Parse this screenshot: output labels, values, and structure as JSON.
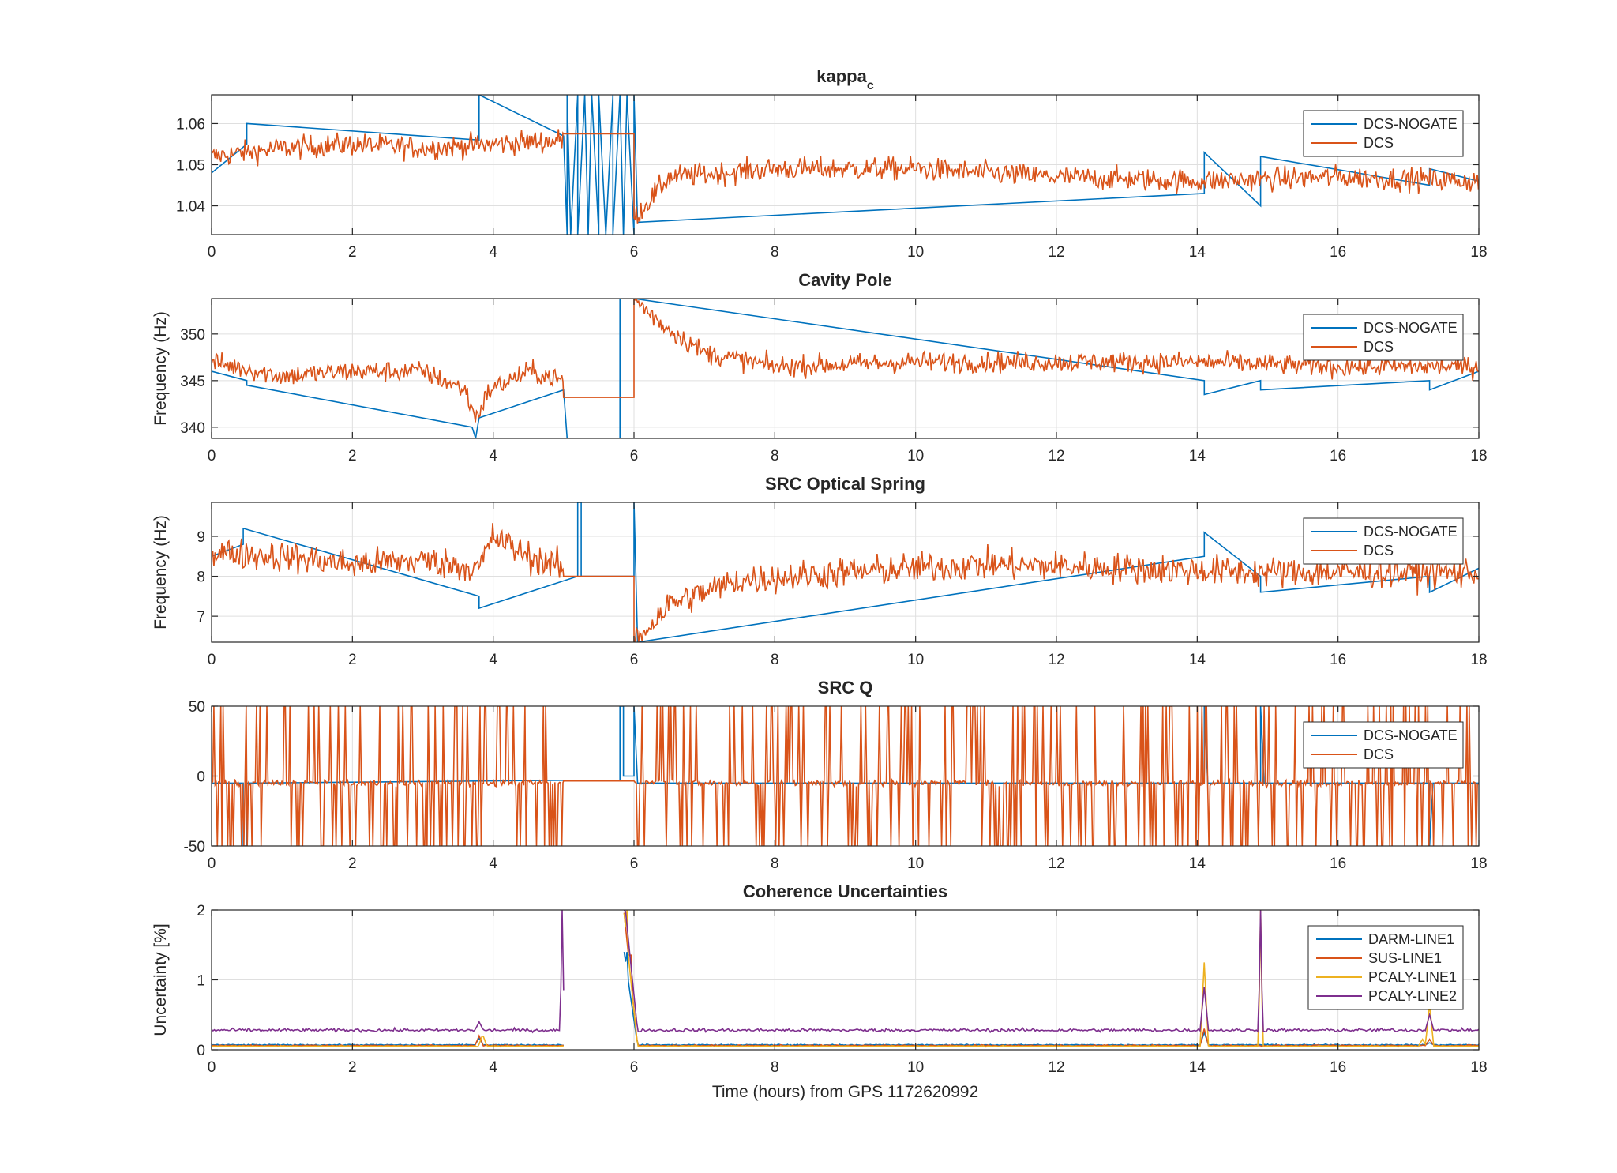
{
  "colors": {
    "blue": "#0072BD",
    "orange": "#D95319",
    "yellow": "#EDB120",
    "purple": "#7E2F8E",
    "axis": "#262626",
    "grid": "#dfdfdf"
  },
  "chart_data": [
    {
      "type": "line",
      "title": "kappa",
      "title_sub": "c",
      "xlabel": "",
      "ylabel": "",
      "xlim": [
        0,
        18
      ],
      "ylim": [
        1.033,
        1.067
      ],
      "xticks": [
        0,
        2,
        4,
        6,
        8,
        10,
        12,
        14,
        16,
        18
      ],
      "yticks": [
        1.04,
        1.05,
        1.06
      ],
      "ytick_labels": [
        "1.04",
        "1.05",
        "1.06"
      ],
      "legend": {
        "position": "top-right",
        "entries": [
          "DCS-NOGATE",
          "DCS"
        ]
      },
      "grid": true,
      "series": [
        {
          "name": "DCS-NOGATE",
          "color": "#0072BD",
          "x": [
            0,
            0.5,
            0.5,
            3.8,
            3.8,
            5.0,
            5.05,
            5.05,
            5.1,
            5.2,
            5.2,
            5.3,
            5.35,
            5.4,
            5.5,
            5.5,
            5.6,
            5.7,
            5.7,
            5.8,
            5.85,
            5.9,
            6.0,
            6.0,
            6.05,
            14.1,
            14.1,
            14.9,
            14.9,
            17.3,
            17.3,
            18
          ],
          "y": [
            1.048,
            1.055,
            1.06,
            1.056,
            1.067,
            1.057,
            1.033,
            1.067,
            1.033,
            1.067,
            1.033,
            1.067,
            1.033,
            1.067,
            1.033,
            1.067,
            1.033,
            1.067,
            1.033,
            1.067,
            1.033,
            1.067,
            1.033,
            1.067,
            1.036,
            1.043,
            1.053,
            1.04,
            1.052,
            1.045,
            1.049,
            1.046
          ]
        },
        {
          "name": "DCS",
          "color": "#D95319",
          "base": [
            [
              0,
              1.052
            ],
            [
              1.0,
              1.054
            ],
            [
              2.0,
              1.055
            ],
            [
              3.0,
              1.054
            ],
            [
              4.0,
              1.055
            ],
            [
              5.0,
              1.056
            ]
          ],
          "flat": [
            [
              5.0,
              1.0575
            ],
            [
              6.0,
              1.0575
            ]
          ],
          "tail": [
            [
              6.0,
              1.037
            ],
            [
              6.5,
              1.047
            ],
            [
              8,
              1.049
            ],
            [
              10,
              1.049
            ],
            [
              12,
              1.047
            ],
            [
              14,
              1.046
            ],
            [
              16,
              1.047
            ],
            [
              18,
              1.046
            ]
          ],
          "noise": 0.004
        }
      ]
    },
    {
      "type": "line",
      "title": "Cavity Pole",
      "xlabel": "",
      "ylabel": "Frequency (Hz)",
      "xlim": [
        0,
        18
      ],
      "ylim": [
        338.8,
        353.8
      ],
      "xticks": [
        0,
        2,
        4,
        6,
        8,
        10,
        12,
        14,
        16,
        18
      ],
      "yticks": [
        340,
        345,
        350
      ],
      "ytick_labels": [
        "340",
        "345",
        "350"
      ],
      "legend": {
        "position": "top-right",
        "entries": [
          "DCS-NOGATE",
          "DCS"
        ]
      },
      "grid": true,
      "series": [
        {
          "name": "DCS-NOGATE",
          "color": "#0072BD",
          "x": [
            0,
            0.5,
            0.5,
            3.7,
            3.75,
            3.8,
            5.0,
            5.05,
            5.05,
            5.8,
            5.8,
            5.85,
            6.0,
            14.1,
            14.1,
            14.9,
            14.9,
            17.3,
            17.3,
            18
          ],
          "y": [
            346,
            345,
            344.5,
            340,
            338.8,
            341,
            344,
            338.8,
            338.8,
            338.8,
            353.8,
            353.8,
            353.8,
            345,
            343.5,
            345,
            344,
            345,
            344,
            346
          ]
        },
        {
          "name": "DCS",
          "color": "#D95319",
          "base": [
            [
              0,
              347
            ],
            [
              1.0,
              345.5
            ],
            [
              2.0,
              346
            ],
            [
              3.0,
              346
            ],
            [
              3.6,
              344
            ],
            [
              3.75,
              341
            ],
            [
              3.95,
              344
            ],
            [
              4.5,
              346
            ],
            [
              5.0,
              345
            ]
          ],
          "flat": [
            [
              5.0,
              343.2
            ],
            [
              6.0,
              343.2
            ]
          ],
          "tail": [
            [
              6.0,
              353.8
            ],
            [
              6.4,
              351
            ],
            [
              7,
              348
            ],
            [
              8,
              346.5
            ],
            [
              10,
              347
            ],
            [
              12,
              347
            ],
            [
              14,
              347
            ],
            [
              16,
              346.5
            ],
            [
              18,
              346.5
            ]
          ],
          "noise": 1.6
        }
      ]
    },
    {
      "type": "line",
      "title": "SRC Optical Spring",
      "xlabel": "",
      "ylabel": "Frequency (Hz)",
      "xlim": [
        0,
        18
      ],
      "ylim": [
        6.35,
        9.85
      ],
      "xticks": [
        0,
        2,
        4,
        6,
        8,
        10,
        12,
        14,
        16,
        18
      ],
      "yticks": [
        7,
        8,
        9
      ],
      "ytick_labels": [
        "7",
        "8",
        "9"
      ],
      "legend": {
        "position": "top-right",
        "entries": [
          "DCS-NOGATE",
          "DCS"
        ]
      },
      "grid": true,
      "series": [
        {
          "name": "DCS-NOGATE",
          "color": "#0072BD",
          "x": [
            0,
            0.45,
            0.45,
            3.8,
            3.8,
            5.2,
            5.2,
            5.25,
            5.25,
            6.0,
            6.0,
            6.05,
            14.1,
            14.1,
            14.9,
            14.9,
            17.3,
            17.3,
            18
          ],
          "y": [
            8.5,
            8.8,
            9.2,
            7.5,
            7.2,
            8.0,
            9.85,
            9.85,
            8.0,
            8.0,
            9.85,
            6.35,
            8.5,
            9.1,
            8.0,
            7.6,
            8.0,
            7.6,
            8.2
          ]
        },
        {
          "name": "DCS",
          "color": "#D95319",
          "base": [
            [
              0,
              8.6
            ],
            [
              1.0,
              8.5
            ],
            [
              2.0,
              8.3
            ],
            [
              3.0,
              8.4
            ],
            [
              3.8,
              8.2
            ],
            [
              4.0,
              9.0
            ],
            [
              4.5,
              8.5
            ],
            [
              5.0,
              8.2
            ]
          ],
          "flat": [
            [
              5.0,
              8.0
            ],
            [
              6.0,
              8.0
            ]
          ],
          "tail": [
            [
              6.0,
              6.35
            ],
            [
              6.5,
              7.3
            ],
            [
              7.5,
              7.9
            ],
            [
              9,
              8.1
            ],
            [
              11,
              8.3
            ],
            [
              13,
              8.2
            ],
            [
              15,
              8.1
            ],
            [
              18,
              8.1
            ]
          ],
          "noise": 0.55
        }
      ]
    },
    {
      "type": "line",
      "title": "SRC Q",
      "xlabel": "",
      "ylabel": "",
      "xlim": [
        0,
        18
      ],
      "ylim": [
        -50,
        50
      ],
      "xticks": [
        0,
        2,
        4,
        6,
        8,
        10,
        12,
        14,
        16,
        18
      ],
      "yticks": [
        -50,
        0,
        50
      ],
      "ytick_labels": [
        "-50",
        "0",
        "50"
      ],
      "legend": {
        "position": "top-right",
        "entries": [
          "DCS-NOGATE",
          "DCS"
        ]
      },
      "grid": true,
      "series": [
        {
          "name": "DCS-NOGATE",
          "color": "#0072BD",
          "x": [
            0,
            0.45,
            0.45,
            0.5,
            0.5,
            5.0,
            5.8,
            5.8,
            5.85,
            5.85,
            6.0,
            6.0,
            6.05,
            14.1,
            14.1,
            14.15,
            14.9,
            14.9,
            14.95,
            17.3,
            17.3,
            17.35,
            18
          ],
          "y": [
            -5,
            -5,
            -50,
            -50,
            -5,
            -3,
            -3,
            50,
            50,
            0,
            0,
            50,
            -5,
            -5,
            50,
            -5,
            -5,
            50,
            -5,
            -5,
            -50,
            -5,
            -5
          ]
        },
        {
          "name": "DCS",
          "color": "#D95319",
          "base": [
            [
              0,
              -5
            ],
            [
              5.0,
              -5
            ]
          ],
          "flat": [
            [
              5.0,
              -3.5
            ],
            [
              6.0,
              -3.5
            ]
          ],
          "tail": [
            [
              6.0,
              -3.5
            ],
            [
              7,
              -5
            ],
            [
              18,
              -5
            ]
          ],
          "noise": 3,
          "spike_density": 0.55
        }
      ]
    },
    {
      "type": "line",
      "title": "Coherence Uncertainties",
      "xlabel": "Time (hours) from GPS 1172620992",
      "ylabel": "Uncertainty [%]",
      "xlim": [
        0,
        18
      ],
      "ylim": [
        0,
        2
      ],
      "xticks": [
        0,
        2,
        4,
        6,
        8,
        10,
        12,
        14,
        16,
        18
      ],
      "yticks": [
        0,
        1,
        2
      ],
      "ytick_labels": [
        "0",
        "1",
        "2"
      ],
      "legend": {
        "position": "top-right",
        "entries": [
          "DARM-LINE1",
          "SUS-LINE1",
          "PCALY-LINE1",
          "PCALY-LINE2"
        ]
      },
      "grid": true,
      "gap": [
        5.0,
        5.85
      ],
      "series": [
        {
          "name": "DARM-LINE1",
          "color": "#0072BD",
          "level": 0.07,
          "noise": 0.015,
          "peaks": [
            [
              3.8,
              0.17
            ],
            [
              5.9,
              1.4
            ],
            [
              14.1,
              0.25
            ],
            [
              17.3,
              0.1
            ]
          ]
        },
        {
          "name": "SUS-LINE1",
          "color": "#D95319",
          "level": 0.06,
          "noise": 0.015,
          "peaks": [
            [
              3.8,
              0.2
            ],
            [
              5.95,
              2.0
            ],
            [
              14.1,
              0.3
            ],
            [
              17.3,
              0.15
            ]
          ]
        },
        {
          "name": "PCALY-LINE1",
          "color": "#EDB120",
          "level": 0.05,
          "noise": 0.012,
          "peaks": [
            [
              3.85,
              0.22
            ],
            [
              5.9,
              2.0
            ],
            [
              14.1,
              1.25
            ],
            [
              14.9,
              2.0
            ],
            [
              17.2,
              0.15
            ],
            [
              17.3,
              0.65
            ]
          ]
        },
        {
          "name": "PCALY-LINE2",
          "color": "#7E2F8E",
          "level": 0.28,
          "noise": 0.04,
          "peaks": [
            [
              3.8,
              0.4
            ],
            [
              4.98,
              2.0
            ],
            [
              5.85,
              2.0
            ],
            [
              14.1,
              0.9
            ],
            [
              14.9,
              2.0
            ],
            [
              17.3,
              0.5
            ]
          ]
        }
      ]
    }
  ]
}
